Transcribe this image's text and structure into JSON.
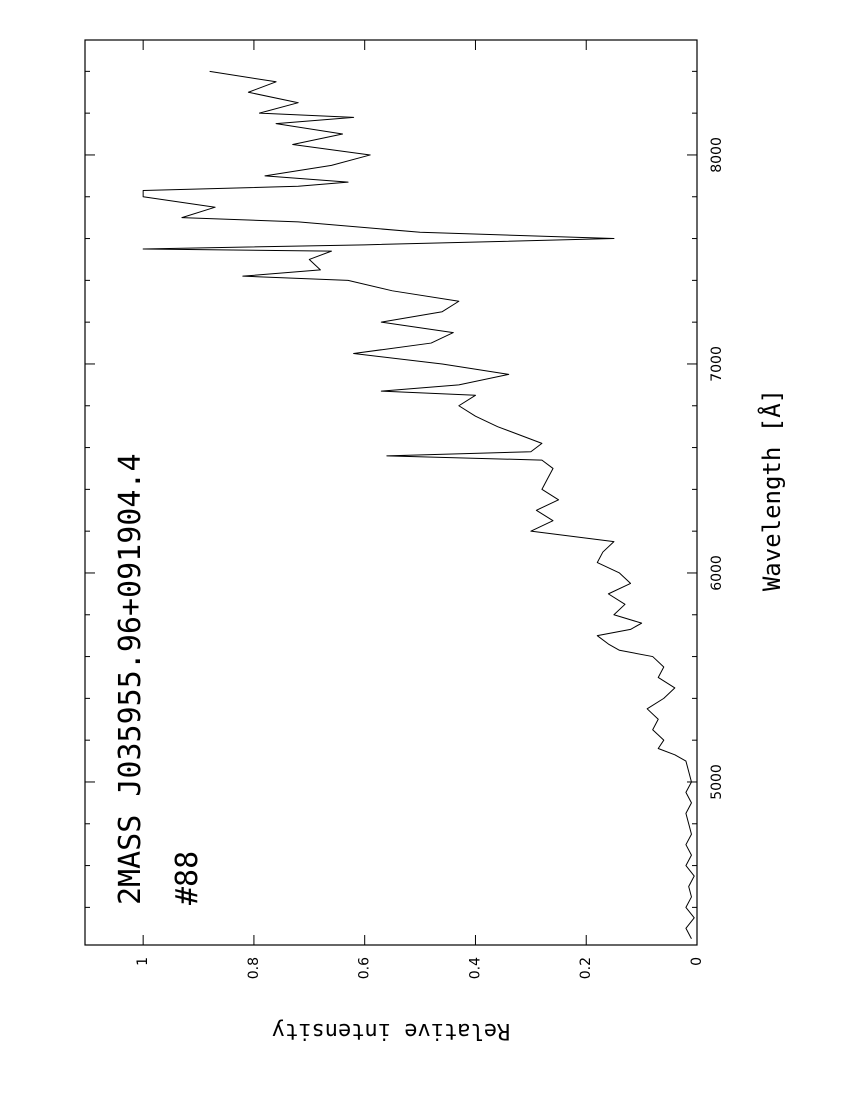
{
  "chart_data": {
    "type": "line",
    "title": "2MASS J035955.96+091904.4",
    "subtitle": "#88",
    "x_label": "Wavelength [Å]",
    "y_label": "Relative intensity",
    "x": [
      4250,
      4300,
      4350,
      4400,
      4450,
      4500,
      4550,
      4600,
      4650,
      4700,
      4750,
      4800,
      4850,
      4900,
      4950,
      5000,
      5050,
      5100,
      5130,
      5160,
      5200,
      5250,
      5300,
      5350,
      5400,
      5450,
      5500,
      5550,
      5600,
      5630,
      5660,
      5700,
      5730,
      5760,
      5800,
      5850,
      5900,
      5950,
      6000,
      6050,
      6100,
      6150,
      6200,
      6250,
      6300,
      6350,
      6400,
      6450,
      6500,
      6540,
      6560,
      6580,
      6620,
      6660,
      6700,
      6750,
      6800,
      6850,
      6870,
      6900,
      6950,
      7000,
      7050,
      7100,
      7150,
      7200,
      7250,
      7300,
      7350,
      7400,
      7420,
      7450,
      7500,
      7540,
      7550,
      7570,
      7600,
      7630,
      7680,
      7700,
      7750,
      7800,
      7830,
      7850,
      7870,
      7900,
      7950,
      8000,
      8050,
      8100,
      8150,
      8180,
      8200,
      8250,
      8300,
      8350,
      8400
    ],
    "series": [
      {
        "name": "spectrum",
        "color": "#000000",
        "values": [
          0.01,
          0.02,
          0.005,
          0.02,
          0.01,
          0.015,
          0.005,
          0.02,
          0.01,
          0.02,
          0.01,
          0.015,
          0.02,
          0.01,
          0.02,
          0.01,
          0.015,
          0.02,
          0.04,
          0.07,
          0.06,
          0.08,
          0.07,
          0.09,
          0.06,
          0.04,
          0.07,
          0.06,
          0.08,
          0.14,
          0.16,
          0.18,
          0.12,
          0.1,
          0.15,
          0.13,
          0.16,
          0.12,
          0.14,
          0.18,
          0.17,
          0.15,
          0.3,
          0.26,
          0.29,
          0.25,
          0.28,
          0.27,
          0.26,
          0.28,
          0.56,
          0.3,
          0.28,
          0.32,
          0.36,
          0.4,
          0.43,
          0.4,
          0.57,
          0.43,
          0.34,
          0.46,
          0.62,
          0.48,
          0.44,
          0.57,
          0.46,
          0.43,
          0.55,
          0.63,
          0.82,
          0.68,
          0.7,
          0.66,
          1.0,
          0.6,
          0.15,
          0.5,
          0.72,
          0.93,
          0.87,
          1.0,
          1.0,
          0.72,
          0.63,
          0.78,
          0.66,
          0.59,
          0.73,
          0.64,
          0.76,
          0.62,
          0.79,
          0.72,
          0.81,
          0.76,
          0.88
        ]
      }
    ],
    "xlim": [
      4220,
      8550
    ],
    "ylim": [
      0,
      1.105
    ],
    "xticks": [
      5000,
      6000,
      7000,
      8000
    ],
    "xticks_minor": [
      4400,
      4600,
      4800,
      5200,
      5400,
      5600,
      5800,
      6200,
      6400,
      6600,
      6800,
      7200,
      7400,
      7600,
      7800,
      8200,
      8400
    ],
    "yticks": [
      0,
      0.2,
      0.4,
      0.6,
      0.8,
      1
    ],
    "grid": false
  }
}
